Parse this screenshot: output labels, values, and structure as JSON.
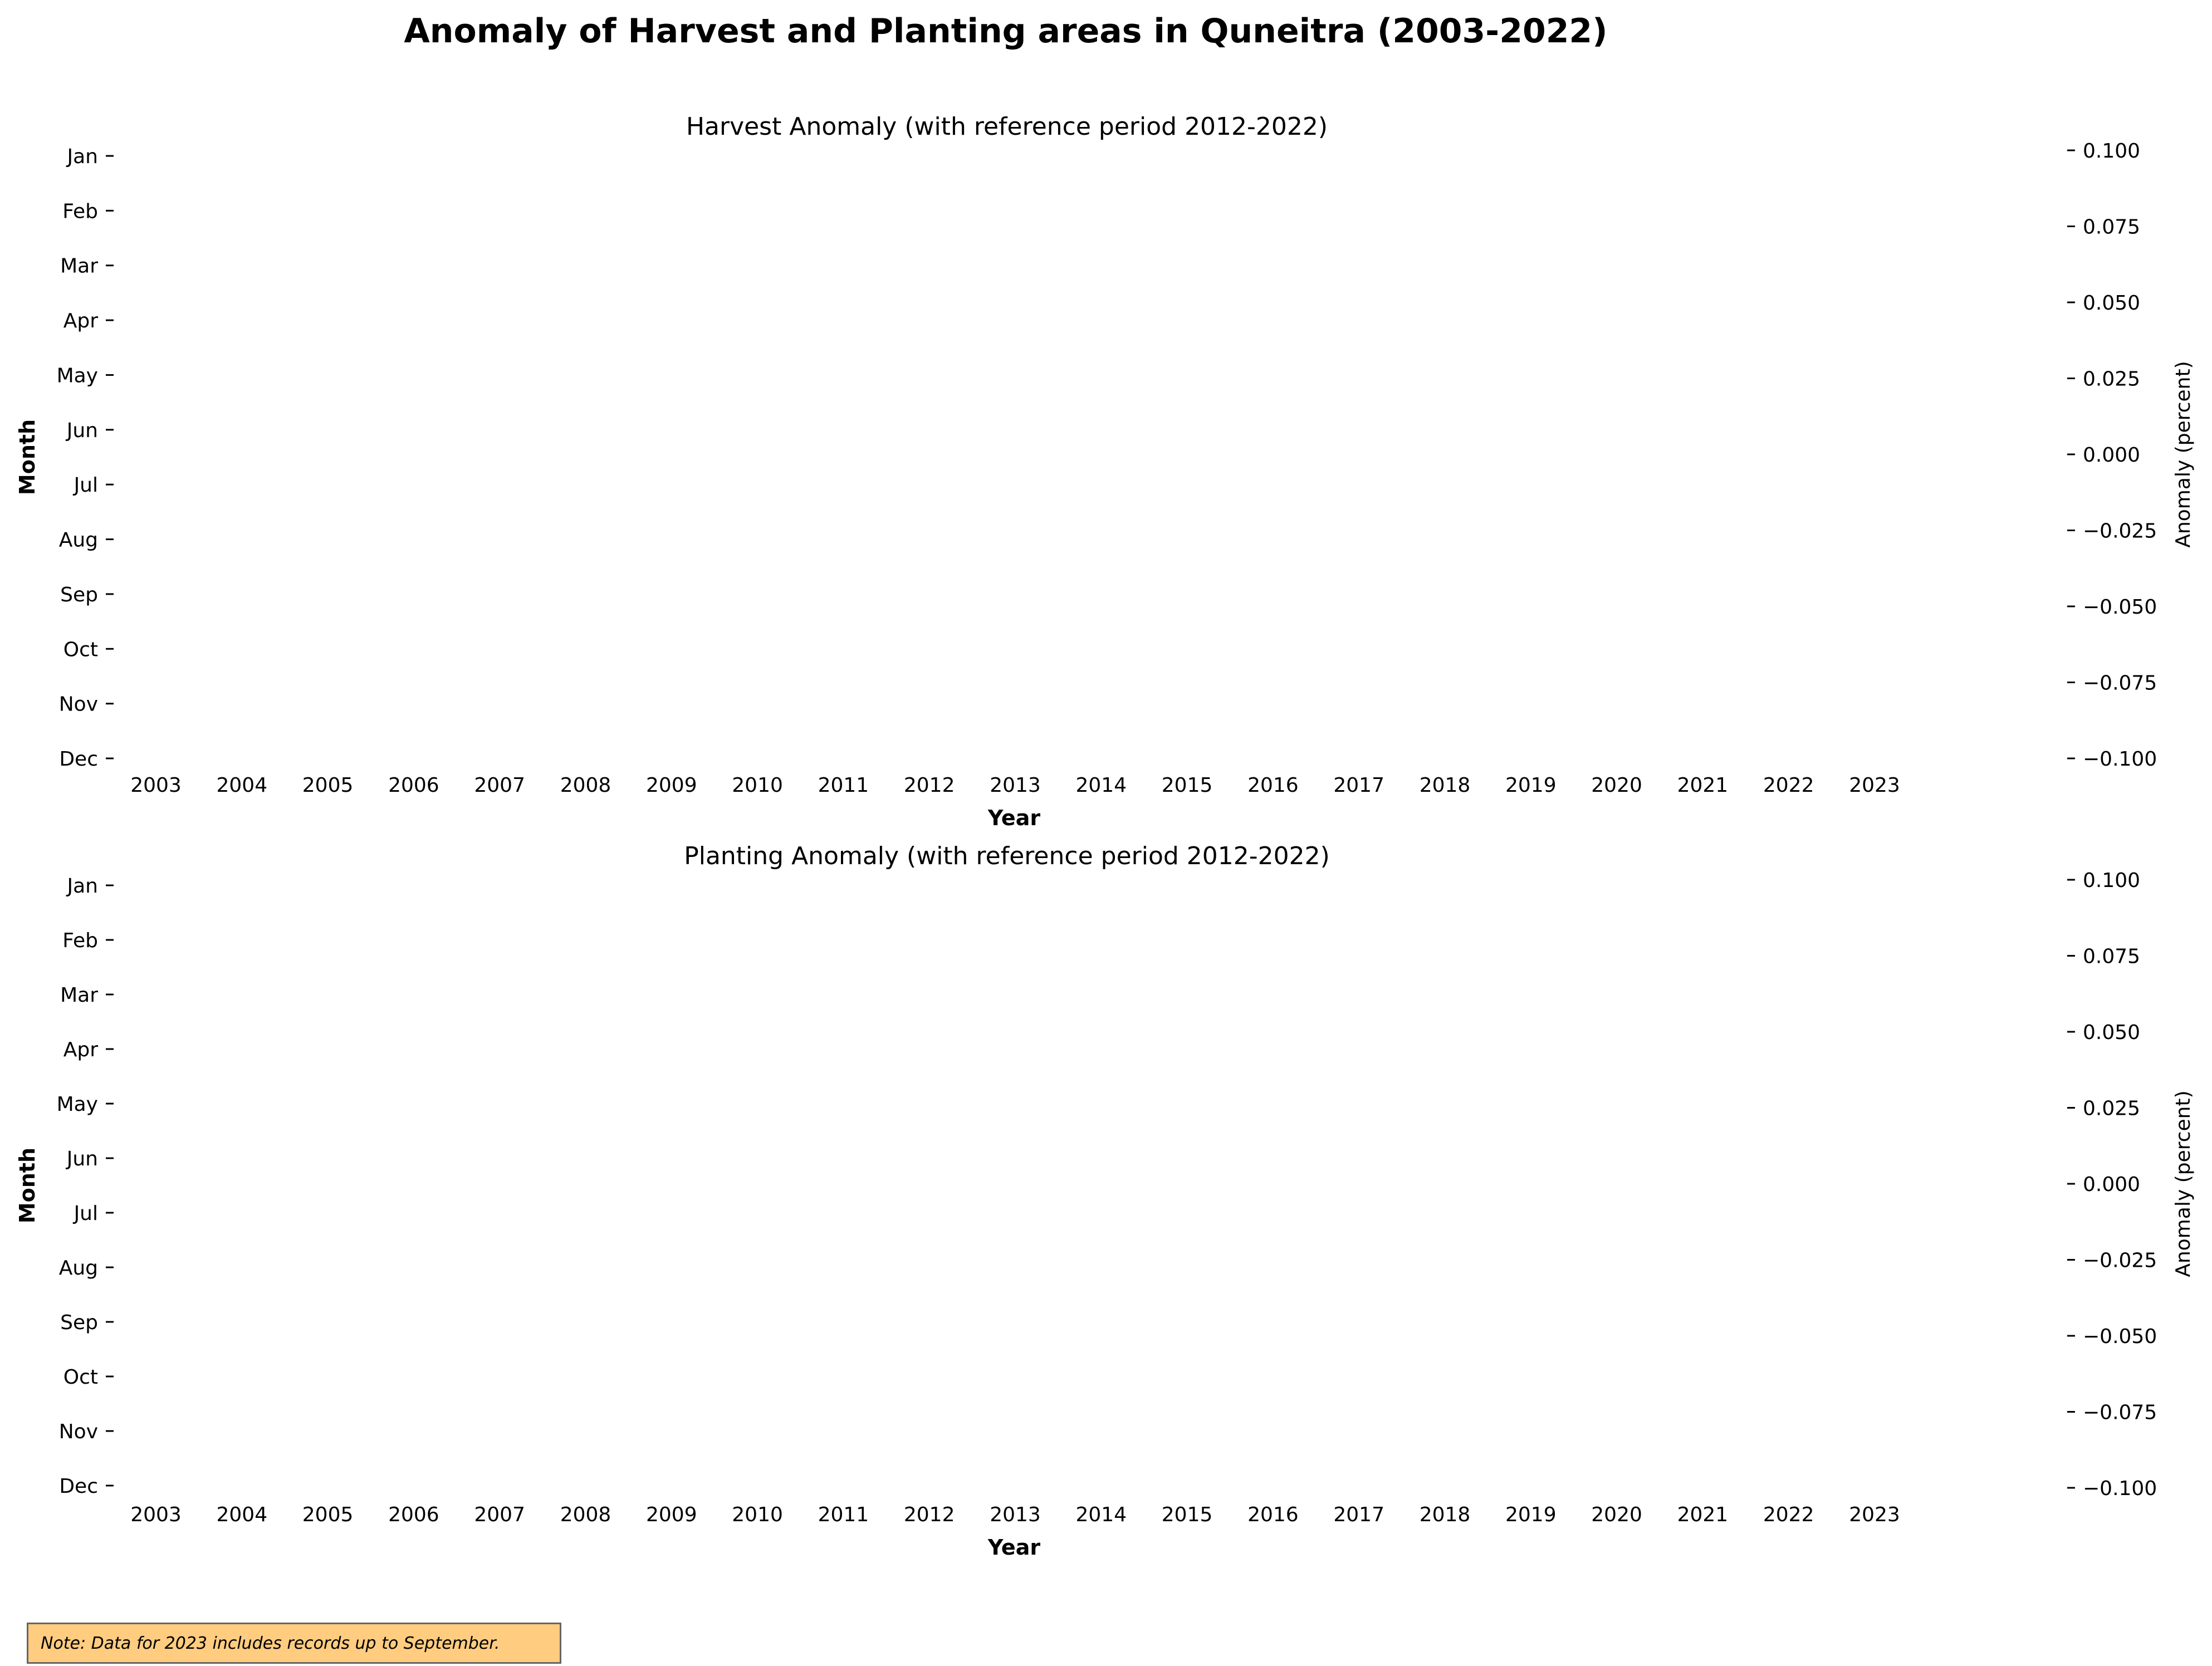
{
  "figure": {
    "title": "Anomaly of Harvest and Planting areas in Quneitra (2003-2022)",
    "note": "Note: Data for 2023 includes records up to September."
  },
  "chart_data": [
    {
      "type": "heatmap",
      "title": "Harvest Anomaly (with reference period 2012-2022)",
      "xlabel": "Year",
      "ylabel": "Month",
      "x_categories": [
        "2003",
        "2004",
        "2005",
        "2006",
        "2007",
        "2008",
        "2009",
        "2010",
        "2011",
        "2012",
        "2013",
        "2014",
        "2015",
        "2016",
        "2017",
        "2018",
        "2019",
        "2020",
        "2021",
        "2022",
        "2023"
      ],
      "y_categories": [
        "Jan",
        "Feb",
        "Mar",
        "Apr",
        "May",
        "Jun",
        "Jul",
        "Aug",
        "Sep",
        "Oct",
        "Nov",
        "Dec"
      ],
      "values": [],
      "colorbar": {
        "label": "Anomaly (percent)",
        "range": [
          -0.1,
          0.1
        ],
        "ticks": [
          "0.100",
          "0.075",
          "0.050",
          "0.025",
          "0.000",
          "−0.025",
          "−0.050",
          "−0.075",
          "−0.100"
        ]
      },
      "grid": false
    },
    {
      "type": "heatmap",
      "title": "Planting Anomaly (with reference period 2012-2022)",
      "xlabel": "Year",
      "ylabel": "Month",
      "x_categories": [
        "2003",
        "2004",
        "2005",
        "2006",
        "2007",
        "2008",
        "2009",
        "2010",
        "2011",
        "2012",
        "2013",
        "2014",
        "2015",
        "2016",
        "2017",
        "2018",
        "2019",
        "2020",
        "2021",
        "2022",
        "2023"
      ],
      "y_categories": [
        "Jan",
        "Feb",
        "Mar",
        "Apr",
        "May",
        "Jun",
        "Jul",
        "Aug",
        "Sep",
        "Oct",
        "Nov",
        "Dec"
      ],
      "values": [],
      "colorbar": {
        "label": "Anomaly (percent)",
        "range": [
          -0.1,
          0.1
        ],
        "ticks": [
          "0.100",
          "0.075",
          "0.050",
          "0.025",
          "0.000",
          "−0.025",
          "−0.050",
          "−0.075",
          "−0.100"
        ]
      },
      "grid": false
    }
  ]
}
